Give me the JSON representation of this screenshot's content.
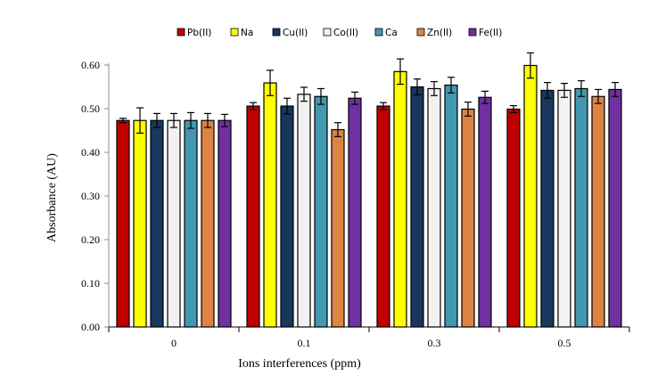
{
  "chart_data": {
    "type": "bar",
    "title": "",
    "xlabel": "Ions interferences (ppm)",
    "ylabel": "Absorbance (AU)",
    "ylim": [
      0,
      0.6
    ],
    "yticks": [
      "0.00",
      "0.10",
      "0.20",
      "0.30",
      "0.40",
      "0.50",
      "0.60"
    ],
    "ytick_values": [
      0,
      0.1,
      0.2,
      0.3,
      0.4,
      0.5,
      0.6
    ],
    "categories": [
      "0",
      "0.1",
      "0.3",
      "0.5"
    ],
    "legend_position": "top",
    "grid": false,
    "series": [
      {
        "name": "Pb(II)",
        "color": "#C00000",
        "values": [
          0.473,
          0.506,
          0.506,
          0.499
        ],
        "errors": [
          0.005,
          0.008,
          0.008,
          0.008
        ]
      },
      {
        "name": "Na",
        "color": "#FFFF00",
        "values": [
          0.473,
          0.559,
          0.585,
          0.599
        ],
        "errors": [
          0.029,
          0.029,
          0.029,
          0.029
        ]
      },
      {
        "name": "Cu(II)",
        "color": "#17375E",
        "values": [
          0.473,
          0.506,
          0.55,
          0.542
        ],
        "errors": [
          0.016,
          0.018,
          0.018,
          0.018
        ]
      },
      {
        "name": "Co(II)",
        "color": "#F2F2F2",
        "values": [
          0.473,
          0.533,
          0.546,
          0.542
        ],
        "errors": [
          0.016,
          0.016,
          0.016,
          0.016
        ]
      },
      {
        "name": "Ca",
        "color": "#4298AE",
        "values": [
          0.473,
          0.528,
          0.554,
          0.546
        ],
        "errors": [
          0.018,
          0.018,
          0.018,
          0.018
        ]
      },
      {
        "name": "Zn(II)",
        "color": "#DD8344",
        "values": [
          0.473,
          0.452,
          0.499,
          0.528
        ],
        "errors": [
          0.016,
          0.016,
          0.016,
          0.016
        ]
      },
      {
        "name": "Fe(II)",
        "color": "#7030A0",
        "values": [
          0.473,
          0.524,
          0.526,
          0.544
        ],
        "errors": [
          0.014,
          0.014,
          0.014,
          0.016
        ]
      }
    ]
  }
}
